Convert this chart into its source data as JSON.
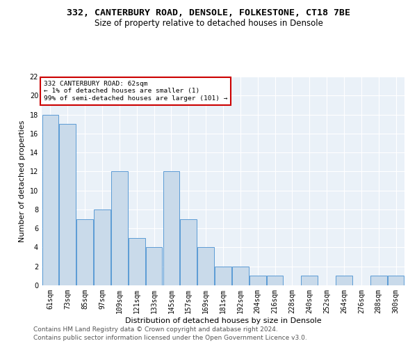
{
  "title1": "332, CANTERBURY ROAD, DENSOLE, FOLKESTONE, CT18 7BE",
  "title2": "Size of property relative to detached houses in Densole",
  "xlabel": "Distribution of detached houses by size in Densole",
  "ylabel": "Number of detached properties",
  "categories": [
    "61sqm",
    "73sqm",
    "85sqm",
    "97sqm",
    "109sqm",
    "121sqm",
    "133sqm",
    "145sqm",
    "157sqm",
    "169sqm",
    "181sqm",
    "192sqm",
    "204sqm",
    "216sqm",
    "228sqm",
    "240sqm",
    "252sqm",
    "264sqm",
    "276sqm",
    "288sqm",
    "300sqm"
  ],
  "values": [
    18,
    17,
    7,
    8,
    12,
    5,
    4,
    12,
    7,
    4,
    2,
    2,
    1,
    1,
    0,
    1,
    0,
    1,
    0,
    1,
    1
  ],
  "bar_color": "#c9daea",
  "bar_edge_color": "#5b9bd5",
  "annotation_box_text": "332 CANTERBURY ROAD: 62sqm\n← 1% of detached houses are smaller (1)\n99% of semi-detached houses are larger (101) →",
  "annotation_box_color": "#ffffff",
  "annotation_box_edge_color": "#cc0000",
  "ylim": [
    0,
    22
  ],
  "yticks": [
    0,
    2,
    4,
    6,
    8,
    10,
    12,
    14,
    16,
    18,
    20,
    22
  ],
  "footer1": "Contains HM Land Registry data © Crown copyright and database right 2024.",
  "footer2": "Contains public sector information licensed under the Open Government Licence v3.0.",
  "bg_color": "#eaf1f8",
  "fig_bg_color": "#ffffff",
  "title1_fontsize": 9.5,
  "title2_fontsize": 8.5,
  "xlabel_fontsize": 8,
  "ylabel_fontsize": 8,
  "tick_fontsize": 7,
  "annot_fontsize": 6.8,
  "footer_fontsize": 6.5
}
